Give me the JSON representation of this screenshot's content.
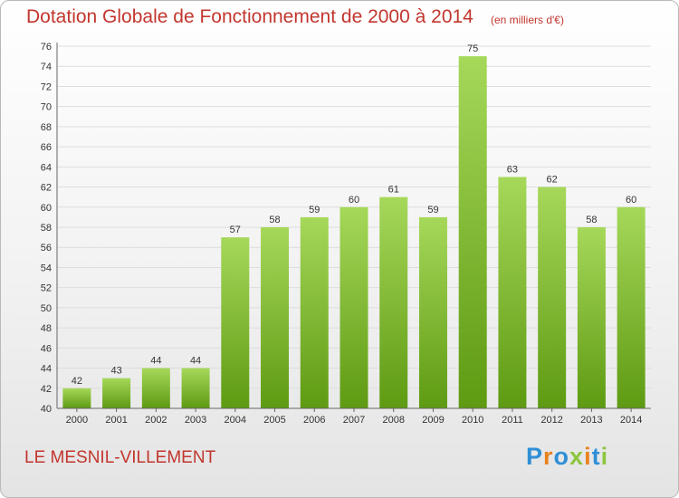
{
  "header": {
    "title": "Dotation Globale de Fonctionnement de 2000 à 2014",
    "unit_note": "(en milliers d'€)"
  },
  "footer": {
    "commune": "LE MESNIL-VILLEMENT",
    "logo_letters": [
      "P",
      "r",
      "o",
      "x",
      "i",
      "t",
      "i"
    ]
  },
  "colors": {
    "title": "#c2362e",
    "bar_light": "#a6d85a",
    "bar_dark": "#5e9a12",
    "logo": [
      "#2f8fd6",
      "#e8821e",
      "#2f8fd6",
      "#8cc63f",
      "#e8821e",
      "#2f8fd6",
      "#8cc63f"
    ]
  },
  "chart_data": {
    "type": "bar",
    "title": "Dotation Globale de Fonctionnement de 2000 à 2014",
    "categories": [
      "2000",
      "2001",
      "2002",
      "2003",
      "2004",
      "2005",
      "2006",
      "2007",
      "2008",
      "2009",
      "2010",
      "2011",
      "2012",
      "2013",
      "2014"
    ],
    "values": [
      42,
      43,
      44,
      44,
      57,
      58,
      59,
      60,
      61,
      59,
      75,
      63,
      62,
      58,
      60
    ],
    "ylim": [
      40,
      76
    ],
    "yticks": [
      "40",
      "42",
      "44",
      "46",
      "48",
      "50",
      "52",
      "54",
      "56",
      "58",
      "60",
      "62",
      "64",
      "66",
      "68",
      "70",
      "72",
      "74",
      "76"
    ],
    "grid": true,
    "xlabel": "",
    "ylabel": ""
  }
}
